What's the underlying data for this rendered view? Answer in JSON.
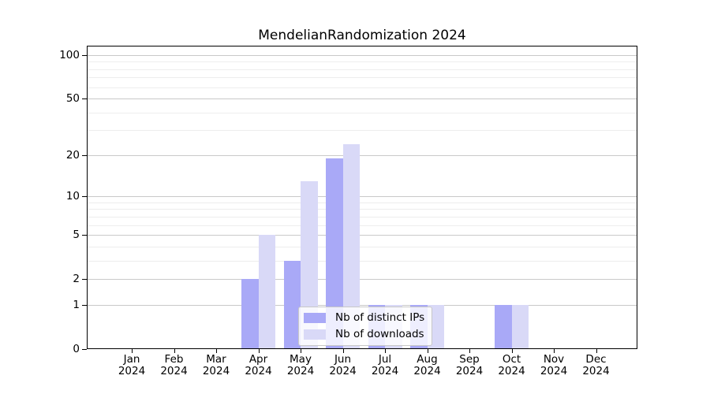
{
  "chart_data": {
    "type": "bar",
    "title": "MendelianRandomization 2024",
    "categories": [
      "Jan 2024",
      "Feb 2024",
      "Mar 2024",
      "Apr 2024",
      "May 2024",
      "Jun 2024",
      "Jul 2024",
      "Aug 2024",
      "Sep 2024",
      "Oct 2024",
      "Nov 2024",
      "Dec 2024"
    ],
    "x_tick_months": [
      "Jan",
      "Feb",
      "Mar",
      "Apr",
      "May",
      "Jun",
      "Jul",
      "Aug",
      "Sep",
      "Oct",
      "Nov",
      "Dec"
    ],
    "x_tick_years": [
      "2024",
      "2024",
      "2024",
      "2024",
      "2024",
      "2024",
      "2024",
      "2024",
      "2024",
      "2024",
      "2024",
      "2024"
    ],
    "series": [
      {
        "name": "Nb of distinct IPs",
        "color": "#a9a9f7",
        "values": [
          0,
          0,
          0,
          2,
          3,
          19,
          1,
          1,
          0,
          1,
          0,
          0
        ]
      },
      {
        "name": "Nb of downloads",
        "color": "#d9d9f7",
        "values": [
          0,
          0,
          0,
          5,
          13,
          24,
          1,
          1,
          0,
          1,
          0,
          0
        ]
      }
    ],
    "y_axis": {
      "scale": "log1p",
      "tick_values": [
        0,
        1,
        2,
        5,
        10,
        20,
        50,
        100
      ],
      "minor_gridline_values": [
        3,
        4,
        6,
        7,
        8,
        9,
        30,
        40,
        60,
        70,
        80,
        90
      ],
      "ylim": [
        0,
        116
      ]
    },
    "xlabel": "",
    "ylabel": "",
    "grid": true,
    "legend": {
      "position": "lower center",
      "items": [
        "Nb of distinct IPs",
        "Nb of downloads"
      ]
    },
    "colors": {
      "axis": "#000000",
      "grid_major": "#c9c9c9",
      "grid_minor": "#ededed",
      "legend_border": "#c8c8c8"
    }
  }
}
